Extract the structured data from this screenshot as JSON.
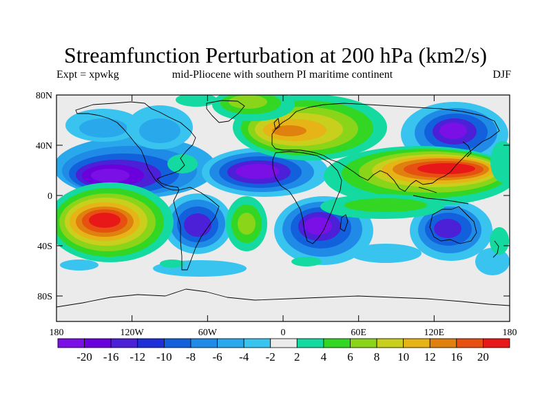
{
  "header": {
    "title": "Streamfunction Perturbation at 200 hPa (km2/s)",
    "left_label": "Expt = xpwkg",
    "center_label": "mid-Pliocene with southern PI maritime continent",
    "right_label": "DJF"
  },
  "map": {
    "lat_ticks": [
      "80N",
      "40N",
      "0",
      "40S",
      "80S"
    ],
    "lon_ticks": [
      "180",
      "120W",
      "60W",
      "0",
      "60E",
      "120E",
      "180"
    ],
    "colors": {
      "background_field": "#ebebeb",
      "coastline": "#000000",
      "frame": "#000000"
    }
  },
  "colorbar": {
    "colors": [
      "#7a0fe6",
      "#6a00dc",
      "#4b20d6",
      "#1e2fd8",
      "#1360dc",
      "#1f8be6",
      "#2aa8ec",
      "#38c4ee",
      "#ebebeb",
      "#14d9a0",
      "#33d622",
      "#8ad41a",
      "#c8cf1c",
      "#e6b416",
      "#e0810f",
      "#e65010",
      "#e81818"
    ],
    "labels": [
      "-20",
      "-16",
      "-12",
      "-10",
      "-8",
      "-6",
      "-4",
      "-2",
      "2",
      "4",
      "6",
      "8",
      "10",
      "12",
      "16",
      "20"
    ]
  },
  "chart_data": {
    "type": "heatmap",
    "title": "Streamfunction Perturbation at 200 hPa (km2/s)",
    "subtitle": "mid-Pliocene with southern PI maritime continent",
    "xlabel": "",
    "ylabel": "",
    "x_range": [
      -180,
      180
    ],
    "y_range": [
      -90,
      90
    ],
    "levels": [
      -20,
      -16,
      -12,
      -10,
      -8,
      -6,
      -4,
      -2,
      2,
      4,
      6,
      8,
      10,
      12,
      16,
      20
    ],
    "features": [
      {
        "lon": -135,
        "lat": 18,
        "value": -20
      },
      {
        "lon": -15,
        "lat": 20,
        "value": -20
      },
      {
        "lon": 140,
        "lat": 50,
        "value": -20
      },
      {
        "lon": -65,
        "lat": -20,
        "value": -16
      },
      {
        "lon": 25,
        "lat": -22,
        "value": -20
      },
      {
        "lon": 125,
        "lat": -22,
        "value": -16
      },
      {
        "lon": -137,
        "lat": -20,
        "value": 20
      },
      {
        "lon": 125,
        "lat": 22,
        "value": 20
      },
      {
        "lon": 0,
        "lat": 55,
        "value": 12
      },
      {
        "lon": -25,
        "lat": 80,
        "value": 8
      },
      {
        "lon": -28,
        "lat": -15,
        "value": 8
      },
      {
        "lon": -160,
        "lat": 70,
        "value": -6
      }
    ]
  }
}
